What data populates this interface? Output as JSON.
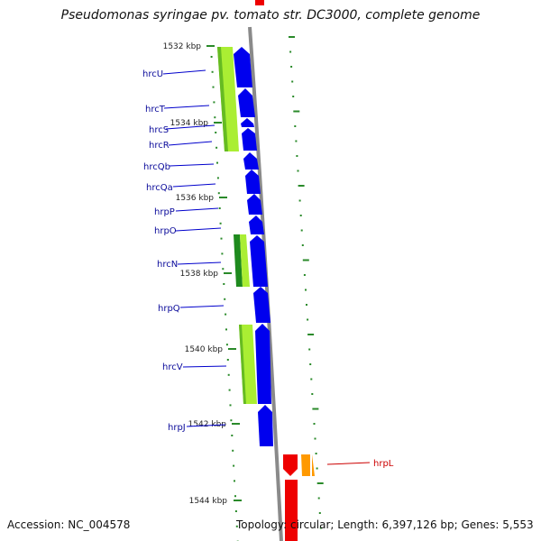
{
  "title": "Pseudomonas syringae pv. tomato str. DC3000, complete genome",
  "footer": {
    "accession": "Accession: NC_004578",
    "topology": "Topology: circular; Length: 6,397,126 bp; Genes: 5,553"
  },
  "colors": {
    "blue_gene": "#0000ee",
    "red_gene": "#ee0000",
    "orange_gene": "#ff9900",
    "light_green": "#aaee33",
    "dark_green": "#1e8a1e",
    "backbone": "#8a8a8a",
    "tick": "#2a8a2a",
    "blue_label": "#0a0a9a",
    "red_label": "#cc0000"
  },
  "kbp_ticks": [
    {
      "label": "1532 kbp"
    },
    {
      "label": "1534 kbp"
    },
    {
      "label": "1536 kbp"
    },
    {
      "label": "1538 kbp"
    },
    {
      "label": "1540 kbp"
    },
    {
      "label": "1542 kbp"
    },
    {
      "label": "1544 kbp"
    }
  ],
  "gene_labels": [
    {
      "label": "hrcU",
      "color": "blue"
    },
    {
      "label": "hrcT",
      "color": "blue"
    },
    {
      "label": "hrcS",
      "color": "blue"
    },
    {
      "label": "hrcR",
      "color": "blue"
    },
    {
      "label": "hrcQb",
      "color": "blue"
    },
    {
      "label": "hrcQa",
      "color": "blue"
    },
    {
      "label": "hrpP",
      "color": "blue"
    },
    {
      "label": "hrpO",
      "color": "blue"
    },
    {
      "label": "hrcN",
      "color": "blue"
    },
    {
      "label": "hrpQ",
      "color": "blue"
    },
    {
      "label": "hrcV",
      "color": "blue"
    },
    {
      "label": "hrpJ",
      "color": "blue"
    },
    {
      "label": "hrpL",
      "color": "red"
    }
  ]
}
